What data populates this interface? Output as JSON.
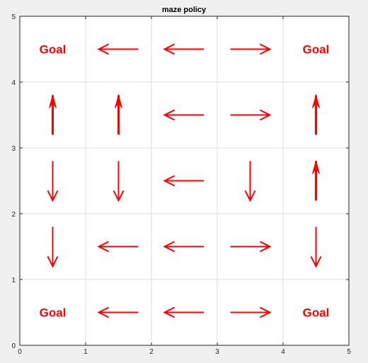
{
  "chart_data": {
    "type": "scatter",
    "title": "maze policy",
    "xlabel": "",
    "ylabel": "",
    "xlim": [
      0,
      5
    ],
    "ylim": [
      0,
      5
    ],
    "xticks": [
      "0",
      "1",
      "2",
      "3",
      "4",
      "5"
    ],
    "yticks": [
      "0",
      "1",
      "2",
      "3",
      "4",
      "5"
    ],
    "grid": true,
    "colors": {
      "arrow": "#ff0000",
      "goal": "#ff0000",
      "grid": "#dcdcdc",
      "axes_bg": "#ffffff",
      "figure_bg": "#f0f0f0"
    },
    "goals": [
      {
        "x": 0.5,
        "y": 4.5,
        "text": "Goal"
      },
      {
        "x": 4.5,
        "y": 4.5,
        "text": "Goal"
      },
      {
        "x": 0.5,
        "y": 0.5,
        "text": "Goal"
      },
      {
        "x": 4.5,
        "y": 0.5,
        "text": "Goal"
      }
    ],
    "arrows": [
      {
        "x": 1.5,
        "y": 4.5,
        "dir": "left"
      },
      {
        "x": 2.5,
        "y": 4.5,
        "dir": "left"
      },
      {
        "x": 3.5,
        "y": 4.5,
        "dir": "right"
      },
      {
        "x": 0.5,
        "y": 3.5,
        "dir": "up"
      },
      {
        "x": 1.5,
        "y": 3.5,
        "dir": "up"
      },
      {
        "x": 2.5,
        "y": 3.5,
        "dir": "left"
      },
      {
        "x": 3.5,
        "y": 3.5,
        "dir": "right"
      },
      {
        "x": 4.5,
        "y": 3.5,
        "dir": "up"
      },
      {
        "x": 0.5,
        "y": 2.5,
        "dir": "down"
      },
      {
        "x": 1.5,
        "y": 2.5,
        "dir": "down"
      },
      {
        "x": 2.5,
        "y": 2.5,
        "dir": "left"
      },
      {
        "x": 3.5,
        "y": 2.5,
        "dir": "down"
      },
      {
        "x": 4.5,
        "y": 2.5,
        "dir": "up"
      },
      {
        "x": 0.5,
        "y": 1.5,
        "dir": "down"
      },
      {
        "x": 1.5,
        "y": 1.5,
        "dir": "left"
      },
      {
        "x": 2.5,
        "y": 1.5,
        "dir": "left"
      },
      {
        "x": 3.5,
        "y": 1.5,
        "dir": "right"
      },
      {
        "x": 4.5,
        "y": 1.5,
        "dir": "down"
      },
      {
        "x": 1.5,
        "y": 0.5,
        "dir": "left"
      },
      {
        "x": 2.5,
        "y": 0.5,
        "dir": "left"
      },
      {
        "x": 3.5,
        "y": 0.5,
        "dir": "right"
      }
    ]
  }
}
